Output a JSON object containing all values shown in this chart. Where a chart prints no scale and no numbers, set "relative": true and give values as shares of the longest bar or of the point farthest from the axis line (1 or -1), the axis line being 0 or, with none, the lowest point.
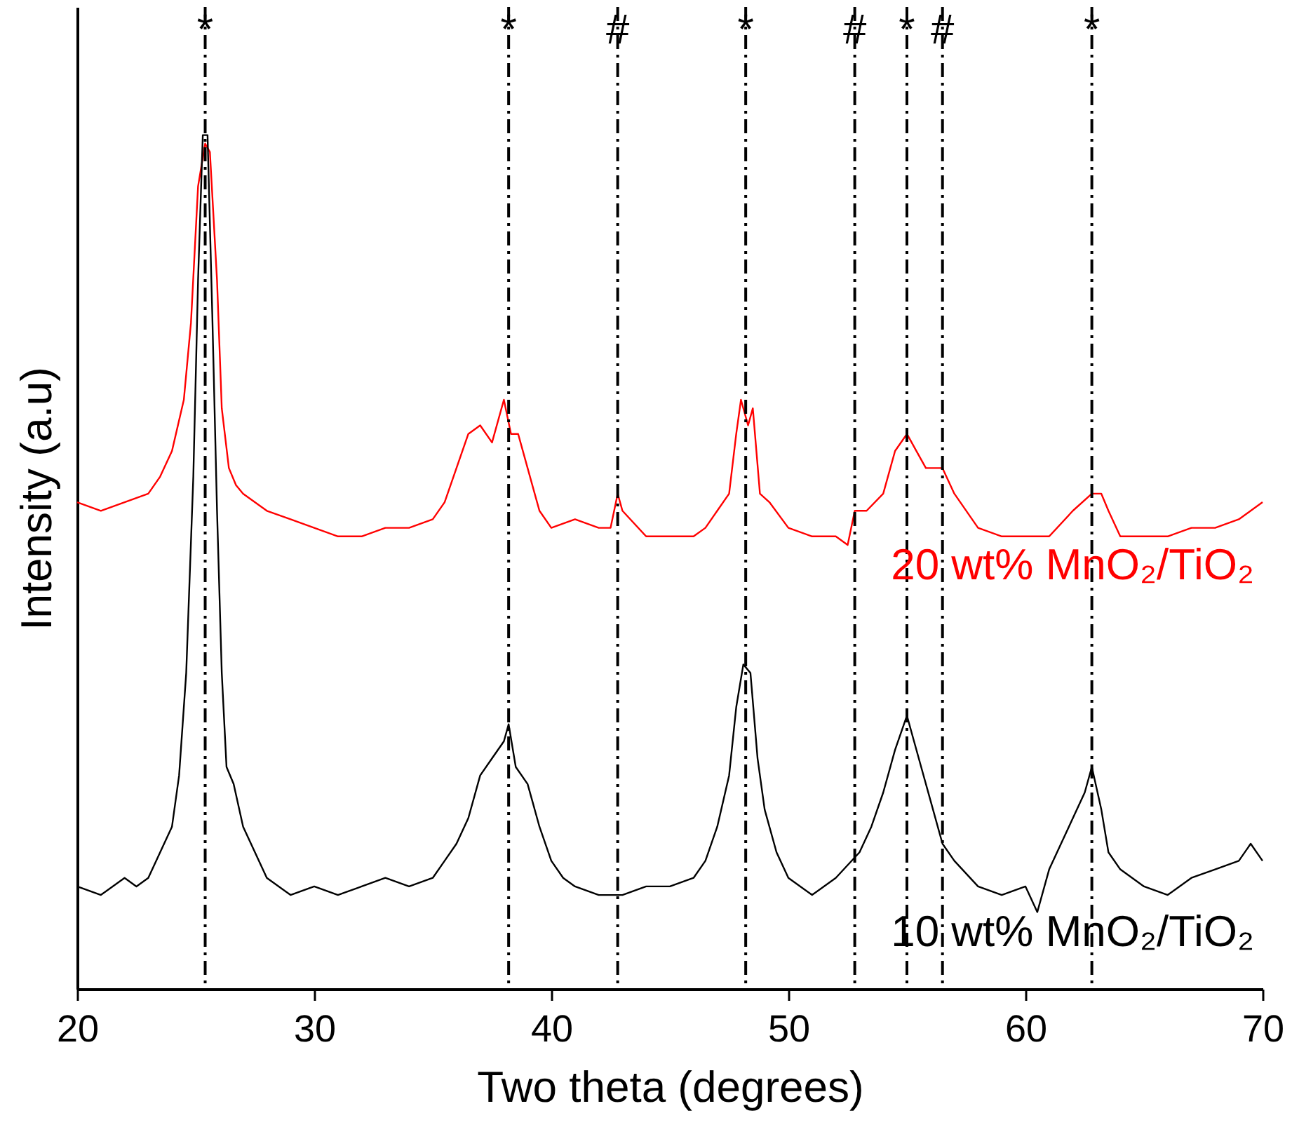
{
  "chart_data": {
    "type": "line",
    "xlabel": "Two theta (degrees)",
    "ylabel": "Intensity (a.u)",
    "relative": true,
    "xlim": [
      20,
      70
    ],
    "xticks": [
      20,
      30,
      40,
      50,
      60,
      70
    ],
    "grid": false,
    "marker": "none",
    "series": [
      {
        "name": "20 wt% MnO₂/TiO₂",
        "color": "#ff0000",
        "x": [
          20,
          21,
          22,
          23,
          23.5,
          24,
          24.5,
          24.8,
          25.1,
          25.4,
          25.6,
          25.9,
          26.1,
          26.4,
          26.7,
          27,
          28,
          29,
          30,
          31,
          32,
          33,
          34,
          35,
          35.5,
          36,
          36.5,
          37,
          37.5,
          38,
          38.3,
          38.6,
          39,
          39.5,
          40,
          41,
          42,
          42.5,
          42.8,
          43,
          44,
          45,
          46,
          46.5,
          47,
          47.5,
          47.8,
          48,
          48.3,
          48.5,
          48.8,
          49.2,
          50,
          51,
          52,
          52.5,
          52.8,
          53.3,
          54,
          54.5,
          55,
          55.4,
          55.8,
          56.5,
          57,
          58,
          59,
          60,
          61,
          62,
          62.8,
          63.2,
          63.5,
          64,
          65,
          66,
          67,
          68,
          69,
          69.5,
          70
        ],
        "values": [
          0.57,
          0.56,
          0.57,
          0.58,
          0.6,
          0.63,
          0.69,
          0.78,
          0.94,
          0.99,
          0.98,
          0.83,
          0.68,
          0.61,
          0.59,
          0.58,
          0.56,
          0.55,
          0.54,
          0.53,
          0.53,
          0.54,
          0.54,
          0.55,
          0.57,
          0.61,
          0.65,
          0.66,
          0.64,
          0.69,
          0.65,
          0.65,
          0.61,
          0.56,
          0.54,
          0.55,
          0.54,
          0.54,
          0.58,
          0.56,
          0.53,
          0.53,
          0.53,
          0.54,
          0.56,
          0.58,
          0.65,
          0.69,
          0.66,
          0.68,
          0.58,
          0.57,
          0.54,
          0.53,
          0.53,
          0.52,
          0.56,
          0.56,
          0.58,
          0.63,
          0.65,
          0.63,
          0.61,
          0.61,
          0.58,
          0.54,
          0.53,
          0.53,
          0.53,
          0.56,
          0.58,
          0.58,
          0.56,
          0.53,
          0.53,
          0.53,
          0.54,
          0.54,
          0.55,
          0.56,
          0.57
        ]
      },
      {
        "name": "10 wt% MnO₂/TiO₂",
        "color": "#000000",
        "x": [
          20,
          21,
          22,
          22.5,
          23,
          23.5,
          24,
          24.3,
          24.6,
          24.9,
          25.1,
          25.3,
          25.5,
          25.7,
          25.9,
          26.1,
          26.3,
          26.6,
          27,
          27.5,
          28,
          29,
          30,
          31,
          32,
          33,
          34,
          35,
          35.5,
          36,
          36.5,
          37,
          37.5,
          38,
          38.2,
          38.5,
          39,
          39.5,
          40,
          40.5,
          41,
          42,
          43,
          44,
          45,
          46,
          46.5,
          47,
          47.5,
          47.8,
          48.1,
          48.4,
          48.7,
          49,
          49.5,
          50,
          51,
          52,
          53,
          53.5,
          54,
          54.5,
          55,
          55.3,
          55.6,
          56,
          56.5,
          57,
          58,
          59,
          60,
          60.5,
          61,
          61.5,
          62,
          62.5,
          62.8,
          63.2,
          63.5,
          64,
          65,
          66,
          67,
          68,
          69,
          69.5,
          70
        ],
        "values": [
          0.12,
          0.11,
          0.13,
          0.12,
          0.13,
          0.16,
          0.19,
          0.25,
          0.37,
          0.6,
          0.83,
          1.0,
          1.0,
          0.79,
          0.56,
          0.37,
          0.26,
          0.24,
          0.19,
          0.16,
          0.13,
          0.11,
          0.12,
          0.11,
          0.12,
          0.13,
          0.12,
          0.13,
          0.15,
          0.17,
          0.2,
          0.25,
          0.27,
          0.29,
          0.31,
          0.26,
          0.24,
          0.19,
          0.15,
          0.13,
          0.12,
          0.11,
          0.11,
          0.12,
          0.12,
          0.13,
          0.15,
          0.19,
          0.25,
          0.33,
          0.38,
          0.37,
          0.27,
          0.21,
          0.16,
          0.13,
          0.11,
          0.13,
          0.16,
          0.19,
          0.23,
          0.28,
          0.32,
          0.29,
          0.26,
          0.22,
          0.17,
          0.15,
          0.12,
          0.11,
          0.12,
          0.09,
          0.14,
          0.17,
          0.2,
          0.23,
          0.26,
          0.21,
          0.16,
          0.14,
          0.12,
          0.11,
          0.13,
          0.14,
          0.15,
          0.17,
          0.15
        ]
      }
    ],
    "ref_lines": [
      {
        "axis": "x",
        "value": 25.4,
        "label": "*",
        "color": "#000000",
        "line_style": "dashed"
      },
      {
        "axis": "x",
        "value": 38.2,
        "label": "*",
        "color": "#000000",
        "line_style": "dashed"
      },
      {
        "axis": "x",
        "value": 42.8,
        "label": "#",
        "color": "#000000",
        "line_style": "dashed"
      },
      {
        "axis": "x",
        "value": 48.2,
        "label": "*",
        "color": "#000000",
        "line_style": "dashed"
      },
      {
        "axis": "x",
        "value": 52.8,
        "label": "#",
        "color": "#000000",
        "line_style": "dashed"
      },
      {
        "axis": "x",
        "value": 55.0,
        "label": "*",
        "color": "#000000",
        "line_style": "dashed"
      },
      {
        "axis": "x",
        "value": 56.5,
        "label": "#",
        "color": "#000000",
        "line_style": "dashed"
      },
      {
        "axis": "x",
        "value": 62.8,
        "label": "*",
        "color": "#000000",
        "line_style": "dashed"
      }
    ]
  }
}
